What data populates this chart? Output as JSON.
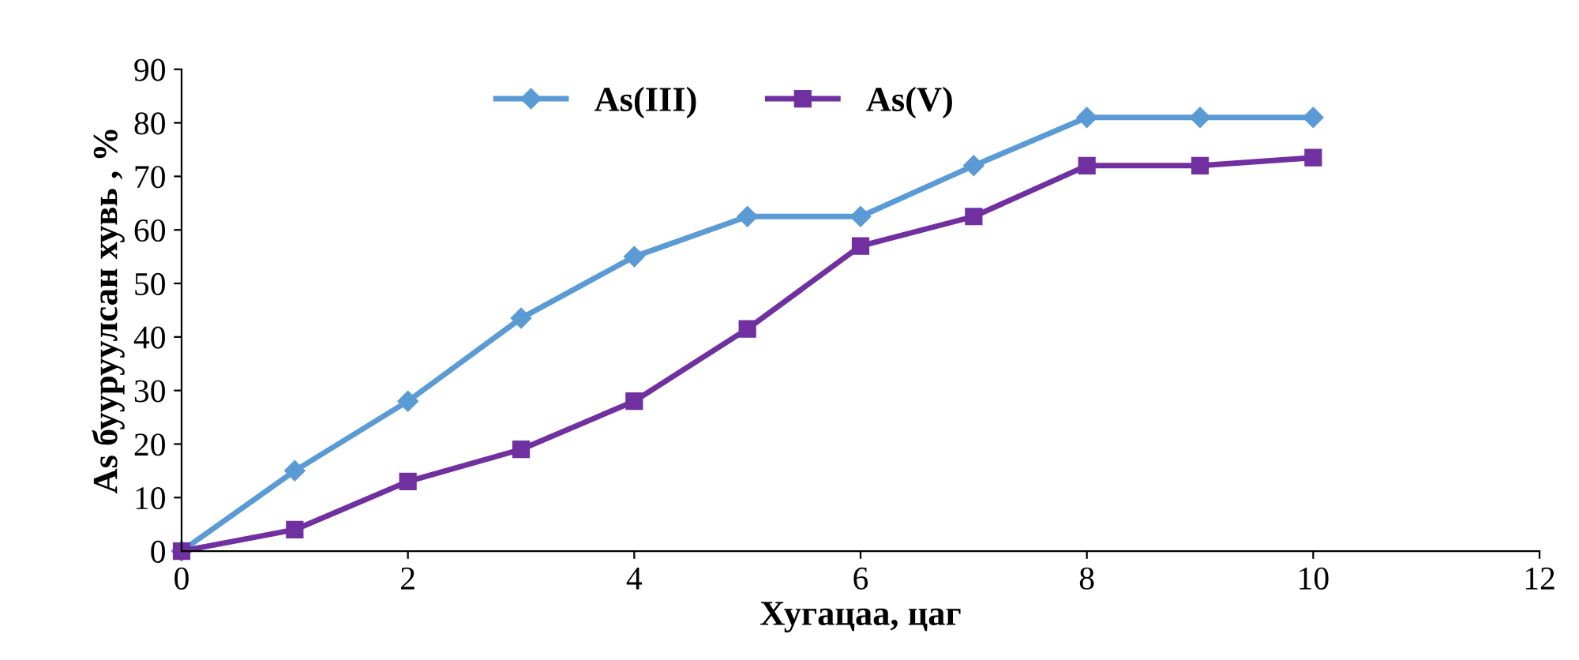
{
  "chart_data": {
    "type": "line",
    "xlabel": "Хугацаа, цаг",
    "ylabel": "As бууруулсан хувь , %",
    "x": [
      0,
      1,
      2,
      3,
      4,
      5,
      6,
      7,
      8,
      9,
      10
    ],
    "series": [
      {
        "name": "As(III)",
        "color": "#5b9bd5",
        "marker": "diamond",
        "values": [
          0,
          15,
          28,
          43.5,
          55,
          62.5,
          62.5,
          72,
          81,
          81,
          81
        ]
      },
      {
        "name": "As(V)",
        "color": "#7030a0",
        "marker": "square",
        "values": [
          0,
          4,
          13,
          19,
          28,
          41.5,
          57,
          62.5,
          72,
          72,
          73.5
        ]
      }
    ],
    "xlim": [
      0,
      12
    ],
    "xticks": [
      0,
      2,
      4,
      6,
      8,
      10,
      12
    ],
    "ylim": [
      0,
      90
    ],
    "yticks": [
      0,
      10,
      20,
      30,
      40,
      50,
      60,
      70,
      80,
      90
    ],
    "grid": false,
    "legend": "top",
    "line_style": "solid"
  }
}
